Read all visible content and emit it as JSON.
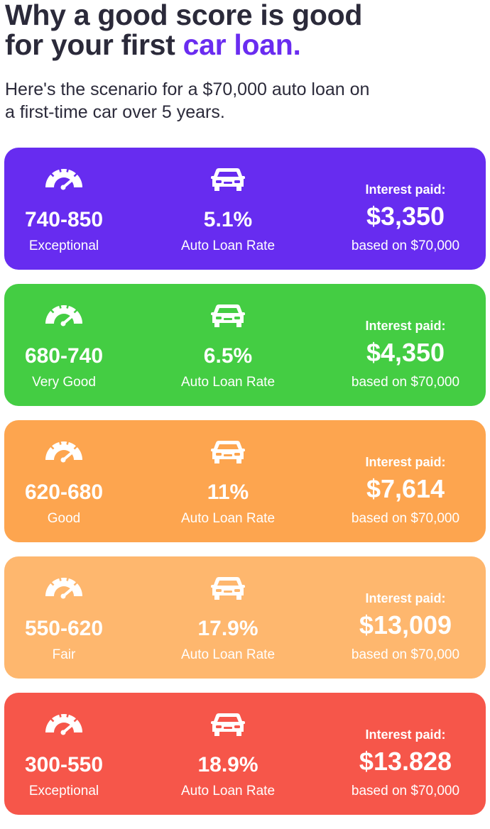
{
  "header": {
    "title_line1": "Why a good score is good",
    "title_line2_prefix": "for your first ",
    "title_line2_accent": "car loan.",
    "subtitle_line1": "Here's the scenario for a $70,000 auto loan on",
    "subtitle_line2": "a first-time car over 5 years."
  },
  "colors": {
    "accent": "#6a2cf0",
    "text": "#2b2a3a"
  },
  "icons": {
    "score": "speedometer-gauge-icon",
    "rate": "car-icon"
  },
  "cards": [
    {
      "score_range": "740-850",
      "score_label": "Exceptional",
      "rate": "5.1%",
      "rate_label": "Auto Loan Rate",
      "interest_label": "Interest paid:",
      "interest_amount": "$3,350",
      "basis": "based on $70,000",
      "color": "#672cf0"
    },
    {
      "score_range": "680-740",
      "score_label": "Very Good",
      "rate": "6.5%",
      "rate_label": "Auto Loan Rate",
      "interest_label": "Interest paid:",
      "interest_amount": "$4,350",
      "basis": "based on $70,000",
      "color": "#44cd43"
    },
    {
      "score_range": "620-680",
      "score_label": "Good",
      "rate": "11%",
      "rate_label": "Auto Loan Rate",
      "interest_label": "Interest paid:",
      "interest_amount": "$7,614",
      "basis": "based on $70,000",
      "color": "#fda54f"
    },
    {
      "score_range": "550-620",
      "score_label": "Fair",
      "rate": "17.9%",
      "rate_label": "Auto Loan Rate",
      "interest_label": "Interest paid:",
      "interest_amount": "$13,009",
      "basis": "based on $70,000",
      "color": "#feb76e"
    },
    {
      "score_range": "300-550",
      "score_label": "Exceptional",
      "rate": "18.9%",
      "rate_label": "Auto Loan Rate",
      "interest_label": "Interest paid:",
      "interest_amount": "$13.828",
      "basis": "based on $70,000",
      "color": "#f6564a"
    }
  ]
}
